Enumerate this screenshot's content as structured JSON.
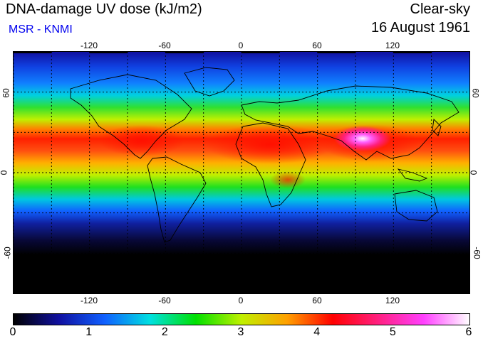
{
  "header": {
    "title": "DNA-damage UV dose (kJ/m2)",
    "subtitle": "MSR - KNMI",
    "condition": "Clear-sky",
    "date": "16 August 1961"
  },
  "map": {
    "projection": "equirectangular",
    "lon_range": [
      -180,
      180
    ],
    "lat_range": [
      -90,
      90
    ],
    "lon_ticks": [
      "-120",
      "-60",
      "0",
      "60",
      "120"
    ],
    "lat_ticks": [
      "60",
      "0",
      "-60"
    ],
    "grid": "dashed every 30 degrees"
  },
  "colorbar": {
    "min": 0,
    "max": 6,
    "labels": [
      "0",
      "1",
      "2",
      "3",
      "4",
      "5",
      "6"
    ],
    "colors": [
      "#000000",
      "#1010a0",
      "#1060ff",
      "#00e0e0",
      "#00e000",
      "#c0f000",
      "#ffa000",
      "#ff0000",
      "#ff2080",
      "#ff40ff",
      "#ffffff"
    ]
  },
  "chart_data": {
    "type": "heatmap",
    "title": "DNA-damage UV dose (kJ/m2)",
    "units": "kJ/m2",
    "value_range": [
      0,
      6
    ],
    "description_zones": [
      {
        "lat_band": [
          -90,
          -65
        ],
        "value_approx": 0
      },
      {
        "lat_band": [
          -65,
          -40
        ],
        "value_approx": 0.5
      },
      {
        "lat_band": [
          -40,
          -25
        ],
        "value_approx": 1.5
      },
      {
        "lat_band": [
          -25,
          -5
        ],
        "value_approx": 3
      },
      {
        "lat_band": [
          -5,
          10
        ],
        "value_approx": 3.5
      },
      {
        "lat_band": [
          10,
          40
        ],
        "value_approx": 4.2
      },
      {
        "lat_band": [
          40,
          55
        ],
        "value_approx": 2.5
      },
      {
        "lat_band": [
          55,
          70
        ],
        "value_approx": 1.5
      },
      {
        "lat_band": [
          70,
          90
        ],
        "value_approx": 1
      }
    ],
    "hotspot": {
      "region": "Tibetan Plateau",
      "lon": 88,
      "lat": 32,
      "value_approx": 6
    }
  }
}
